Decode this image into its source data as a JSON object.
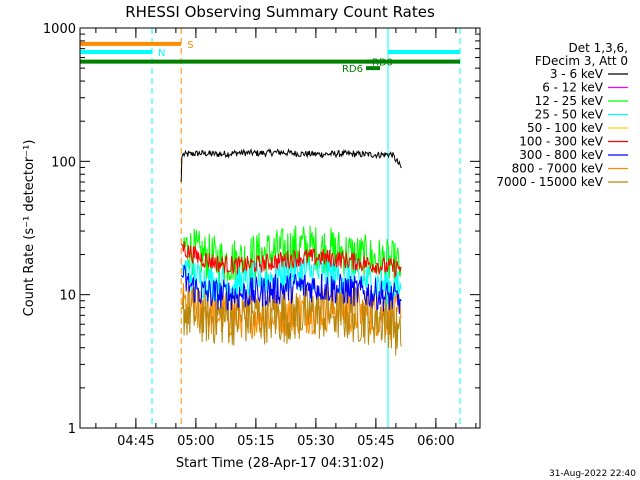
{
  "chart_data": {
    "type": "line",
    "title": "RHESSI Observing Summary Count Rates",
    "xlabel": "Start Time (28-Apr-17 04:31:02)",
    "ylabel": "Count Rate (s⁻¹ detector⁻¹)",
    "yscale": "log",
    "ylim": [
      1,
      1000
    ],
    "yticks": [
      {
        "value": 1,
        "label": "1"
      },
      {
        "value": 10,
        "label": "10"
      },
      {
        "value": 100,
        "label": "100"
      },
      {
        "value": 1000,
        "label": "1000"
      }
    ],
    "xlim_minutes": [
      0,
      100
    ],
    "xticks": [
      {
        "minute": 13.97,
        "label": "04:45"
      },
      {
        "minute": 28.97,
        "label": "05:00"
      },
      {
        "minute": 43.97,
        "label": "05:15"
      },
      {
        "minute": 58.97,
        "label": "05:30"
      },
      {
        "minute": 73.97,
        "label": "05:45"
      },
      {
        "minute": 88.97,
        "label": "06:00"
      }
    ],
    "legend_header": [
      "Det 1,3,6,",
      "FDecim 3, Att 0"
    ],
    "legend_position": "right",
    "series": [
      {
        "name": "3 - 6 keV",
        "color": "#000000",
        "points": [
          [
            25.3,
            70
          ],
          [
            25.5,
            112
          ],
          [
            30,
            115
          ],
          [
            35,
            113
          ],
          [
            40,
            116
          ],
          [
            45,
            115
          ],
          [
            50,
            117
          ],
          [
            55,
            114
          ],
          [
            60,
            113
          ],
          [
            65,
            114
          ],
          [
            70,
            113
          ],
          [
            75,
            112
          ],
          [
            78,
            113
          ],
          [
            80.5,
            88
          ]
        ]
      },
      {
        "name": "6 - 12 keV",
        "color": "#ff00ff",
        "points": []
      },
      {
        "name": "12 - 25 keV",
        "color": "#00ff00",
        "points": [
          [
            25.3,
            24
          ],
          [
            27,
            22
          ],
          [
            30,
            20
          ],
          [
            35,
            18
          ],
          [
            40,
            18
          ],
          [
            45,
            20
          ],
          [
            50,
            21
          ],
          [
            55,
            23
          ],
          [
            60,
            22
          ],
          [
            65,
            21
          ],
          [
            70,
            19
          ],
          [
            75,
            18
          ],
          [
            78,
            17
          ],
          [
            80.5,
            16
          ]
        ]
      },
      {
        "name": "25 - 50 keV",
        "color": "#00ffff",
        "points": [
          [
            25.3,
            17
          ],
          [
            27,
            15
          ],
          [
            30,
            13
          ],
          [
            35,
            12
          ],
          [
            40,
            12
          ],
          [
            45,
            13
          ],
          [
            50,
            14
          ],
          [
            55,
            15
          ],
          [
            60,
            14.5
          ],
          [
            65,
            14
          ],
          [
            70,
            13
          ],
          [
            75,
            12
          ],
          [
            78,
            11.5
          ],
          [
            80.5,
            11
          ]
        ]
      },
      {
        "name": "50 - 100 keV",
        "color": "#ffd700",
        "points": []
      },
      {
        "name": "100 - 300 keV",
        "color": "#ff0000",
        "points": [
          [
            25.3,
            24
          ],
          [
            27,
            21
          ],
          [
            30,
            19
          ],
          [
            35,
            17
          ],
          [
            40,
            16.5
          ],
          [
            45,
            17
          ],
          [
            50,
            18
          ],
          [
            55,
            19
          ],
          [
            60,
            19
          ],
          [
            65,
            18.5
          ],
          [
            70,
            17.5
          ],
          [
            75,
            16.5
          ],
          [
            78,
            16
          ],
          [
            80.5,
            16
          ]
        ]
      },
      {
        "name": "300 - 800 keV",
        "color": "#0000ff",
        "points": [
          [
            25.3,
            14
          ],
          [
            27,
            12
          ],
          [
            30,
            10.5
          ],
          [
            35,
            10
          ],
          [
            40,
            10
          ],
          [
            45,
            10.5
          ],
          [
            50,
            11
          ],
          [
            55,
            11.5
          ],
          [
            60,
            11.5
          ],
          [
            65,
            11
          ],
          [
            70,
            10.5
          ],
          [
            75,
            10
          ],
          [
            78,
            9.5
          ],
          [
            80.5,
            9
          ]
        ]
      },
      {
        "name": "800 - 7000 keV",
        "color": "#ff8c00",
        "points": [
          [
            25.3,
            8.5
          ],
          [
            27,
            8
          ],
          [
            30,
            7.5
          ],
          [
            35,
            7.2
          ],
          [
            40,
            7
          ],
          [
            45,
            7.2
          ],
          [
            50,
            7.3
          ],
          [
            55,
            7.5
          ],
          [
            60,
            7.8
          ],
          [
            65,
            7.8
          ],
          [
            70,
            7.5
          ],
          [
            75,
            7.2
          ],
          [
            78,
            7
          ],
          [
            80.5,
            6.8
          ]
        ]
      },
      {
        "name": "7000 - 15000 keV",
        "color": "#b8860b",
        "points": [
          [
            25.3,
            8
          ],
          [
            27,
            7.5
          ],
          [
            30,
            7
          ],
          [
            35,
            6.8
          ],
          [
            40,
            6.8
          ],
          [
            45,
            7
          ],
          [
            50,
            7
          ],
          [
            55,
            7.2
          ],
          [
            60,
            7.4
          ],
          [
            65,
            7.3
          ],
          [
            70,
            7
          ],
          [
            75,
            6.8
          ],
          [
            78,
            6.5
          ],
          [
            80.5,
            4
          ]
        ]
      }
    ],
    "bars": [
      {
        "label": "S",
        "color": "#ff8c00",
        "x_minutes": [
          0,
          25.3
        ],
        "y": 760
      },
      {
        "label": "N",
        "color": "#00ffff",
        "x_minutes": [
          0,
          18
        ],
        "y": 660
      },
      {
        "label": "",
        "color": "#00ffff",
        "x_minutes": [
          77,
          95
        ],
        "y": 660
      },
      {
        "label": "",
        "color": "#008000",
        "x_minutes": [
          0,
          95
        ],
        "y": 560
      },
      {
        "label": "RD0",
        "color": "#008000",
        "x_minutes": [
          71.5,
          75
        ],
        "y": 560
      },
      {
        "label": "RD6",
        "color": "#008000",
        "x_minutes": [
          71.5,
          75
        ],
        "y": 500
      }
    ],
    "vertical_lines": [
      {
        "minute": 0,
        "color": "#00ffff",
        "style": "solid"
      },
      {
        "minute": 18,
        "color": "#00ffff",
        "style": "dashed"
      },
      {
        "minute": 25.3,
        "color": "#ff8c00",
        "style": "dashed"
      },
      {
        "minute": 77,
        "color": "#00ffff",
        "style": "solid"
      },
      {
        "minute": 95,
        "color": "#00ffff",
        "style": "dashed"
      }
    ],
    "footer_date": "31-Aug-2022 22:40"
  }
}
